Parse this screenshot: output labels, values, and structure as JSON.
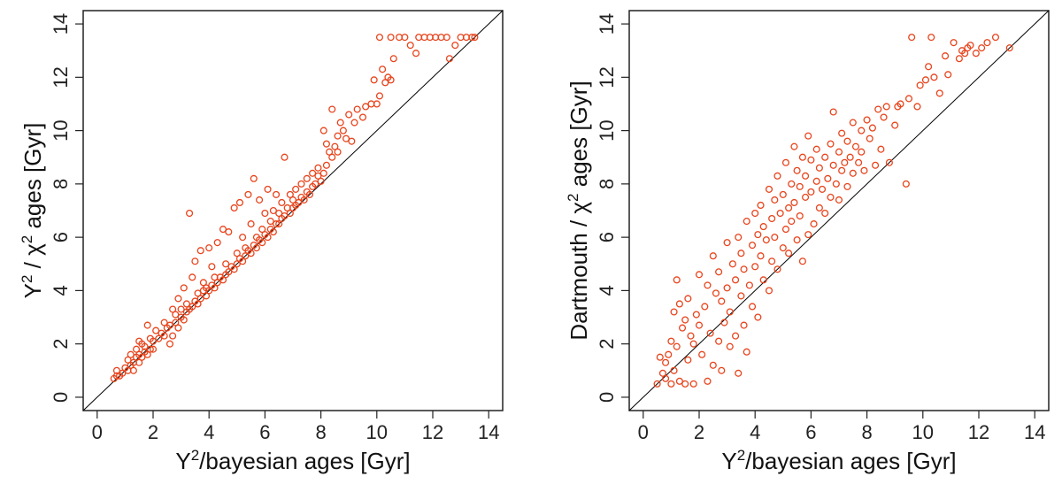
{
  "colors": {
    "marker": "#e8441c",
    "frame": "#222222",
    "diagonal": "#000000"
  },
  "chart_data": [
    {
      "type": "scatter",
      "xlabel": {
        "base": "Y",
        "sup": "2",
        "rest": "/bayesian ages [Gyr]"
      },
      "ylabel": {
        "base": "Y",
        "sup": "2",
        "mid": " / χ",
        "sup2": "2",
        "rest": " ages [Gyr]"
      },
      "xlim": [
        -0.5,
        14.5
      ],
      "ylim": [
        -0.5,
        14.5
      ],
      "xticks": [
        0,
        2,
        4,
        6,
        8,
        10,
        12,
        14
      ],
      "yticks": [
        0,
        2,
        4,
        6,
        8,
        10,
        12,
        14
      ],
      "reference_line": "y = x",
      "marker": "open-circle",
      "points": [
        [
          0.6,
          0.7
        ],
        [
          0.7,
          0.8
        ],
        [
          0.7,
          1.0
        ],
        [
          0.8,
          0.8
        ],
        [
          0.9,
          0.9
        ],
        [
          1.0,
          1.1
        ],
        [
          1.1,
          1.0
        ],
        [
          1.1,
          1.4
        ],
        [
          1.2,
          1.2
        ],
        [
          1.2,
          1.6
        ],
        [
          1.3,
          1.0
        ],
        [
          1.3,
          1.3
        ],
        [
          1.4,
          1.5
        ],
        [
          1.4,
          1.8
        ],
        [
          1.5,
          1.3
        ],
        [
          1.5,
          1.6
        ],
        [
          1.5,
          2.1
        ],
        [
          1.6,
          1.5
        ],
        [
          1.6,
          2.0
        ],
        [
          1.7,
          1.7
        ],
        [
          1.7,
          1.9
        ],
        [
          1.8,
          2.7
        ],
        [
          1.8,
          1.6
        ],
        [
          1.9,
          1.8
        ],
        [
          1.9,
          2.2
        ],
        [
          2.0,
          1.8
        ],
        [
          2.0,
          2.1
        ],
        [
          2.1,
          2.5
        ],
        [
          2.2,
          2.2
        ],
        [
          2.3,
          2.4
        ],
        [
          2.4,
          2.3
        ],
        [
          2.4,
          2.8
        ],
        [
          2.5,
          2.6
        ],
        [
          2.6,
          2.7
        ],
        [
          2.6,
          2.0
        ],
        [
          2.7,
          2.3
        ],
        [
          2.7,
          3.3
        ],
        [
          2.8,
          2.8
        ],
        [
          2.8,
          3.1
        ],
        [
          2.9,
          2.6
        ],
        [
          2.9,
          3.7
        ],
        [
          3.0,
          3.0
        ],
        [
          3.0,
          3.3
        ],
        [
          3.1,
          2.9
        ],
        [
          3.1,
          4.1
        ],
        [
          3.2,
          3.2
        ],
        [
          3.2,
          3.5
        ],
        [
          3.3,
          6.9
        ],
        [
          3.3,
          3.3
        ],
        [
          3.4,
          3.4
        ],
        [
          3.4,
          4.5
        ],
        [
          3.5,
          3.6
        ],
        [
          3.5,
          5.1
        ],
        [
          3.6,
          3.5
        ],
        [
          3.6,
          3.9
        ],
        [
          3.7,
          3.7
        ],
        [
          3.7,
          5.5
        ],
        [
          3.8,
          4.0
        ],
        [
          3.8,
          4.3
        ],
        [
          3.9,
          3.8
        ],
        [
          3.9,
          4.1
        ],
        [
          4.0,
          5.6
        ],
        [
          4.0,
          4.0
        ],
        [
          4.1,
          4.2
        ],
        [
          4.1,
          4.9
        ],
        [
          4.2,
          4.1
        ],
        [
          4.2,
          4.5
        ],
        [
          4.3,
          4.3
        ],
        [
          4.3,
          5.8
        ],
        [
          4.4,
          4.5
        ],
        [
          4.5,
          4.4
        ],
        [
          4.5,
          6.3
        ],
        [
          4.6,
          4.6
        ],
        [
          4.6,
          5.0
        ],
        [
          4.7,
          4.7
        ],
        [
          4.7,
          6.2
        ],
        [
          4.8,
          4.9
        ],
        [
          4.9,
          4.8
        ],
        [
          4.9,
          7.1
        ],
        [
          5.0,
          5.0
        ],
        [
          5.0,
          5.4
        ],
        [
          5.1,
          5.2
        ],
        [
          5.1,
          7.3
        ],
        [
          5.2,
          5.1
        ],
        [
          5.2,
          6.0
        ],
        [
          5.3,
          5.3
        ],
        [
          5.3,
          5.6
        ],
        [
          5.4,
          5.5
        ],
        [
          5.4,
          7.6
        ],
        [
          5.5,
          5.4
        ],
        [
          5.5,
          6.5
        ],
        [
          5.6,
          5.7
        ],
        [
          5.6,
          8.2
        ],
        [
          5.7,
          5.6
        ],
        [
          5.7,
          6.0
        ],
        [
          5.8,
          5.9
        ],
        [
          5.8,
          7.4
        ],
        [
          5.9,
          5.8
        ],
        [
          5.9,
          6.3
        ],
        [
          6.0,
          6.1
        ],
        [
          6.0,
          6.9
        ],
        [
          6.1,
          6.0
        ],
        [
          6.1,
          7.8
        ],
        [
          6.2,
          6.3
        ],
        [
          6.2,
          6.6
        ],
        [
          6.3,
          6.2
        ],
        [
          6.3,
          7.0
        ],
        [
          6.4,
          6.5
        ],
        [
          6.4,
          7.6
        ],
        [
          6.5,
          6.5
        ],
        [
          6.5,
          6.9
        ],
        [
          6.6,
          6.7
        ],
        [
          6.6,
          7.3
        ],
        [
          6.7,
          9.0
        ],
        [
          6.7,
          6.8
        ],
        [
          6.8,
          7.1
        ],
        [
          6.9,
          6.9
        ],
        [
          6.9,
          7.6
        ],
        [
          7.0,
          7.1
        ],
        [
          7.0,
          7.4
        ],
        [
          7.1,
          7.2
        ],
        [
          7.1,
          7.8
        ],
        [
          7.2,
          7.3
        ],
        [
          7.3,
          7.5
        ],
        [
          7.3,
          8.0
        ],
        [
          7.4,
          7.4
        ],
        [
          7.5,
          7.7
        ],
        [
          7.5,
          8.2
        ],
        [
          7.6,
          7.6
        ],
        [
          7.7,
          7.9
        ],
        [
          7.7,
          8.4
        ],
        [
          7.8,
          8.0
        ],
        [
          7.9,
          8.3
        ],
        [
          7.9,
          8.6
        ],
        [
          8.0,
          8.1
        ],
        [
          8.1,
          10.0
        ],
        [
          8.1,
          8.4
        ],
        [
          8.2,
          9.5
        ],
        [
          8.2,
          8.7
        ],
        [
          8.3,
          9.2
        ],
        [
          8.4,
          9.0
        ],
        [
          8.4,
          10.8
        ],
        [
          8.5,
          9.4
        ],
        [
          8.6,
          9.8
        ],
        [
          8.6,
          9.2
        ],
        [
          8.7,
          10.3
        ],
        [
          8.8,
          10.0
        ],
        [
          8.9,
          9.7
        ],
        [
          9.0,
          10.6
        ],
        [
          9.1,
          9.6
        ],
        [
          9.2,
          10.3
        ],
        [
          9.3,
          10.8
        ],
        [
          9.5,
          10.5
        ],
        [
          9.6,
          10.9
        ],
        [
          9.8,
          11.0
        ],
        [
          9.9,
          11.9
        ],
        [
          10.0,
          11.0
        ],
        [
          10.1,
          11.3
        ],
        [
          10.2,
          12.3
        ],
        [
          10.3,
          11.8
        ],
        [
          10.4,
          12.0
        ],
        [
          10.5,
          11.9
        ],
        [
          10.6,
          12.7
        ],
        [
          10.1,
          13.5
        ],
        [
          10.5,
          13.5
        ],
        [
          10.8,
          13.5
        ],
        [
          11.0,
          13.5
        ],
        [
          11.2,
          13.2
        ],
        [
          11.4,
          12.9
        ],
        [
          11.5,
          13.5
        ],
        [
          11.7,
          13.5
        ],
        [
          11.9,
          13.5
        ],
        [
          12.1,
          13.5
        ],
        [
          12.3,
          13.5
        ],
        [
          12.5,
          13.5
        ],
        [
          12.6,
          12.7
        ],
        [
          12.8,
          13.2
        ],
        [
          13.0,
          13.5
        ],
        [
          13.2,
          13.5
        ],
        [
          13.4,
          13.5
        ],
        [
          13.5,
          13.5
        ]
      ]
    },
    {
      "type": "scatter",
      "xlabel": {
        "base": "Y",
        "sup": "2",
        "rest": "/bayesian ages [Gyr]"
      },
      "ylabel": {
        "base": "Dartmouth / χ",
        "sup": "2",
        "rest": "ages [Gyr]"
      },
      "xlim": [
        -0.5,
        14.5
      ],
      "ylim": [
        -0.5,
        14.5
      ],
      "xticks": [
        0,
        2,
        4,
        6,
        8,
        10,
        12,
        14
      ],
      "yticks": [
        0,
        2,
        4,
        6,
        8,
        10,
        12,
        14
      ],
      "reference_line": "y = x",
      "marker": "open-circle",
      "points": [
        [
          0.5,
          0.5
        ],
        [
          0.6,
          1.5
        ],
        [
          0.7,
          0.9
        ],
        [
          0.8,
          1.3
        ],
        [
          0.8,
          0.7
        ],
        [
          0.9,
          1.6
        ],
        [
          1.0,
          2.1
        ],
        [
          1.0,
          0.5
        ],
        [
          1.1,
          3.2
        ],
        [
          1.1,
          1.0
        ],
        [
          1.2,
          4.4
        ],
        [
          1.2,
          1.9
        ],
        [
          1.3,
          0.6
        ],
        [
          1.3,
          3.5
        ],
        [
          1.4,
          2.6
        ],
        [
          1.5,
          0.5
        ],
        [
          1.5,
          2.9
        ],
        [
          1.6,
          1.4
        ],
        [
          1.6,
          3.7
        ],
        [
          1.7,
          2.3
        ],
        [
          1.8,
          0.5
        ],
        [
          1.8,
          2.0
        ],
        [
          1.9,
          3.1
        ],
        [
          2.0,
          4.6
        ],
        [
          2.0,
          2.7
        ],
        [
          2.1,
          1.6
        ],
        [
          2.2,
          3.4
        ],
        [
          2.3,
          0.6
        ],
        [
          2.3,
          4.2
        ],
        [
          2.4,
          2.4
        ],
        [
          2.5,
          5.3
        ],
        [
          2.5,
          1.2
        ],
        [
          2.6,
          3.9
        ],
        [
          2.7,
          2.1
        ],
        [
          2.7,
          4.7
        ],
        [
          2.8,
          1.0
        ],
        [
          2.8,
          3.6
        ],
        [
          2.9,
          2.8
        ],
        [
          3.0,
          5.8
        ],
        [
          3.0,
          4.1
        ],
        [
          3.1,
          1.9
        ],
        [
          3.1,
          3.2
        ],
        [
          3.2,
          5.0
        ],
        [
          3.3,
          2.3
        ],
        [
          3.3,
          4.4
        ],
        [
          3.4,
          6.0
        ],
        [
          3.4,
          0.9
        ],
        [
          3.5,
          3.8
        ],
        [
          3.5,
          5.4
        ],
        [
          3.6,
          2.7
        ],
        [
          3.6,
          4.8
        ],
        [
          3.7,
          6.6
        ],
        [
          3.7,
          1.7
        ],
        [
          3.8,
          4.2
        ],
        [
          3.9,
          5.7
        ],
        [
          3.9,
          3.4
        ],
        [
          4.0,
          6.9
        ],
        [
          4.0,
          4.9
        ],
        [
          4.1,
          3.0
        ],
        [
          4.1,
          6.1
        ],
        [
          4.2,
          5.3
        ],
        [
          4.2,
          7.2
        ],
        [
          4.3,
          4.4
        ],
        [
          4.3,
          6.4
        ],
        [
          4.4,
          5.9
        ],
        [
          4.5,
          7.8
        ],
        [
          4.5,
          4.0
        ],
        [
          4.6,
          6.7
        ],
        [
          4.6,
          5.1
        ],
        [
          4.7,
          7.4
        ],
        [
          4.7,
          6.0
        ],
        [
          4.8,
          8.3
        ],
        [
          4.8,
          4.8
        ],
        [
          4.9,
          6.9
        ],
        [
          5.0,
          7.6
        ],
        [
          5.0,
          5.6
        ],
        [
          5.1,
          8.8
        ],
        [
          5.1,
          6.3
        ],
        [
          5.2,
          7.1
        ],
        [
          5.2,
          5.4
        ],
        [
          5.3,
          8.0
        ],
        [
          5.3,
          6.6
        ],
        [
          5.4,
          9.4
        ],
        [
          5.4,
          7.3
        ],
        [
          5.5,
          5.9
        ],
        [
          5.5,
          8.5
        ],
        [
          5.6,
          6.8
        ],
        [
          5.6,
          7.9
        ],
        [
          5.7,
          9.0
        ],
        [
          5.7,
          5.1
        ],
        [
          5.8,
          7.5
        ],
        [
          5.8,
          8.3
        ],
        [
          5.9,
          6.1
        ],
        [
          5.9,
          9.8
        ],
        [
          6.0,
          7.7
        ],
        [
          6.0,
          8.9
        ],
        [
          6.1,
          6.5
        ],
        [
          6.2,
          8.1
        ],
        [
          6.2,
          9.3
        ],
        [
          6.3,
          7.1
        ],
        [
          6.3,
          8.6
        ],
        [
          6.4,
          7.8
        ],
        [
          6.5,
          9.0
        ],
        [
          6.5,
          6.9
        ],
        [
          6.6,
          8.2
        ],
        [
          6.7,
          9.5
        ],
        [
          6.7,
          7.5
        ],
        [
          6.8,
          10.7
        ],
        [
          6.8,
          8.7
        ],
        [
          6.9,
          8.0
        ],
        [
          7.0,
          9.2
        ],
        [
          7.0,
          7.4
        ],
        [
          7.1,
          8.5
        ],
        [
          7.1,
          9.9
        ],
        [
          7.2,
          8.8
        ],
        [
          7.3,
          9.6
        ],
        [
          7.3,
          7.9
        ],
        [
          7.4,
          9.0
        ],
        [
          7.5,
          10.3
        ],
        [
          7.5,
          8.4
        ],
        [
          7.6,
          9.4
        ],
        [
          7.7,
          8.8
        ],
        [
          7.8,
          10.0
        ],
        [
          7.8,
          9.2
        ],
        [
          7.9,
          8.5
        ],
        [
          8.0,
          10.4
        ],
        [
          8.1,
          9.7
        ],
        [
          8.2,
          10.1
        ],
        [
          8.3,
          8.7
        ],
        [
          8.4,
          10.8
        ],
        [
          8.5,
          9.3
        ],
        [
          8.6,
          10.5
        ],
        [
          8.7,
          10.9
        ],
        [
          8.8,
          8.8
        ],
        [
          9.0,
          10.2
        ],
        [
          9.1,
          10.9
        ],
        [
          9.2,
          11.0
        ],
        [
          9.4,
          8.0
        ],
        [
          9.5,
          11.2
        ],
        [
          9.6,
          13.5
        ],
        [
          9.8,
          10.9
        ],
        [
          9.9,
          11.7
        ],
        [
          10.1,
          11.9
        ],
        [
          10.2,
          12.4
        ],
        [
          10.3,
          13.5
        ],
        [
          10.4,
          12.0
        ],
        [
          10.6,
          11.4
        ],
        [
          10.8,
          12.8
        ],
        [
          10.9,
          12.1
        ],
        [
          11.1,
          13.3
        ],
        [
          11.3,
          12.7
        ],
        [
          11.4,
          13.0
        ],
        [
          11.5,
          12.9
        ],
        [
          11.6,
          13.1
        ],
        [
          11.7,
          13.2
        ],
        [
          11.9,
          12.9
        ],
        [
          12.1,
          13.1
        ],
        [
          12.3,
          13.3
        ],
        [
          12.6,
          13.5
        ],
        [
          13.1,
          13.1
        ]
      ]
    }
  ]
}
